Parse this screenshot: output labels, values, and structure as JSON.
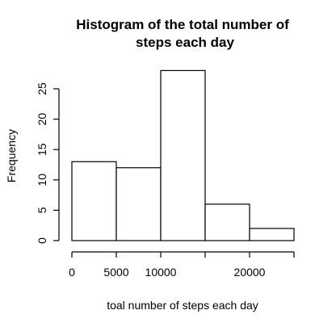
{
  "chart_data": {
    "type": "bar",
    "title_lines": [
      "Histogram of the total number of",
      "steps each day"
    ],
    "xlabel": "toal number of steps each day",
    "ylabel": "Frequency",
    "bins": [
      {
        "x0": 0,
        "x1": 5000,
        "count": 13
      },
      {
        "x0": 5000,
        "x1": 10000,
        "count": 12
      },
      {
        "x0": 10000,
        "x1": 15000,
        "count": 28
      },
      {
        "x0": 15000,
        "x1": 20000,
        "count": 6
      },
      {
        "x0": 20000,
        "x1": 25000,
        "count": 2
      }
    ],
    "xlim": [
      0,
      25000
    ],
    "ylim": [
      0,
      28
    ],
    "x_ticks": [
      0,
      5000,
      10000,
      15000,
      20000,
      25000
    ],
    "x_tick_labels": [
      "0",
      "5000",
      "10000",
      "",
      "20000",
      ""
    ],
    "y_ticks": [
      0,
      5,
      10,
      15,
      20,
      25
    ],
    "y_tick_labels": [
      "0",
      "5",
      "10",
      "15",
      "20",
      "25"
    ],
    "grid": false,
    "legend": "none"
  }
}
